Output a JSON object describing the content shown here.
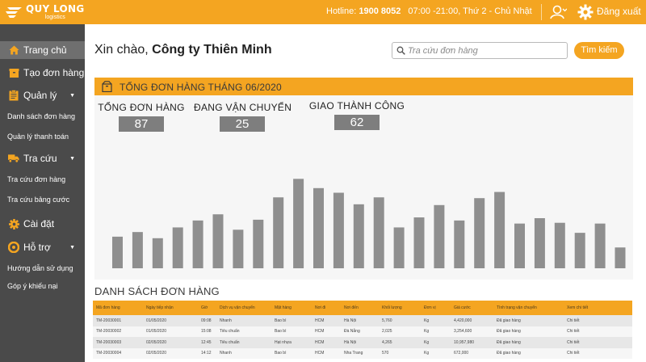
{
  "header": {
    "logo_line1": "QUY LONG",
    "logo_line2": "logistics",
    "hotline_label": "Hotline:",
    "hotline_number": "1900 8052",
    "hours": "07:00 -21:00, Thứ 2 - Chủ Nhật",
    "logout_label": "Đăng xuất",
    "brand_color": "#f4a521"
  },
  "sidebar": {
    "items": [
      {
        "label": "Trang chủ",
        "icon": "home-icon",
        "type": "main",
        "active": true
      },
      {
        "label": "Tạo đơn hàng",
        "icon": "box-icon",
        "type": "main"
      },
      {
        "label": "Quản lý",
        "icon": "clipboard-icon",
        "type": "main",
        "caret": true
      },
      {
        "label": "Danh sách đơn hàng",
        "type": "sub"
      },
      {
        "label": "Quản lý thanh toán",
        "type": "sub"
      },
      {
        "label": "Tra cứu",
        "icon": "truck-icon",
        "type": "main",
        "caret": true
      },
      {
        "label": "Tra cứu đơn hàng",
        "type": "sub"
      },
      {
        "label": "Tra cứu bảng cước",
        "type": "sub"
      },
      {
        "label": "Cài đặt",
        "icon": "gear-icon",
        "type": "main"
      },
      {
        "label": "Hỗ trợ",
        "icon": "support-icon",
        "type": "main",
        "caret": true
      },
      {
        "label": "Hướng dẫn sử dụng",
        "type": "sub"
      },
      {
        "label": "Góp ý khiếu nại",
        "type": "sub"
      }
    ]
  },
  "greeting": {
    "prefix": "Xin chào,",
    "company": "Công ty Thiên Minh"
  },
  "search": {
    "placeholder": "Tra cứu đơn hàng",
    "button_label": "Tìm kiếm"
  },
  "summary": {
    "title": "TỔNG ĐƠN HÀNG THÁNG 06/2020",
    "stats": [
      {
        "label": "TỔNG ĐƠN HÀNG",
        "value": "87"
      },
      {
        "label": "ĐANG VẬN CHUYỂN",
        "value": "25"
      },
      {
        "label": "GIAO THÀNH CÔNG",
        "value": "62"
      }
    ]
  },
  "chart_data": {
    "type": "bar",
    "categories": [
      "",
      "",
      "",
      "",
      "",
      "",
      "",
      "",
      "",
      "",
      "",
      "",
      "",
      "",
      "",
      "",
      "",
      "",
      "",
      "",
      "",
      "",
      "",
      "",
      "",
      ""
    ],
    "values": [
      41,
      47,
      39,
      53,
      62,
      70,
      50,
      63,
      92,
      116,
      104,
      98,
      83,
      92,
      53,
      66,
      82,
      62,
      91,
      99,
      58,
      65,
      59,
      46,
      58,
      27
    ],
    "ylim": [
      0,
      130
    ],
    "bar_color": "#8f8f8f",
    "grid": false
  },
  "orders": {
    "title": "DANH SÁCH ĐƠN HÀNG",
    "columns": [
      "Mã đơn hàng",
      "Ngày tiếp nhận",
      "Giờ",
      "Dịch vụ vận chuyển",
      "Mặt hàng",
      "Nơi đi",
      "Nơi đến",
      "Khối lượng",
      "Đơn vị",
      "Giá cước",
      "Tình trạng vận chuyển",
      "Xem chi tiết"
    ],
    "rows": [
      [
        "TM-20030001",
        "01/05/2020",
        "09:08",
        "Nhanh",
        "Bao bì",
        "HCM",
        "Hà Nội",
        "5,760",
        "Kg",
        "4,420,000",
        "Đã giao hàng",
        "Chi tiết"
      ],
      [
        "TM-20030002",
        "01/05/2020",
        "15:08",
        "Tiêu chuẩn",
        "Bao bì",
        "HCM",
        "Đà Nẵng",
        "2,025",
        "Kg",
        "3,254,600",
        "Đã giao hàng",
        "Chi tiết"
      ],
      [
        "TM-20030003",
        "02/05/2020",
        "12:45",
        "Tiêu chuẩn",
        "Hạt nhựa",
        "HCM",
        "Hà Nội",
        "4,265",
        "Kg",
        "10,957,980",
        "Đã giao hàng",
        "Chi tiết"
      ],
      [
        "TM-20030004",
        "02/05/2020",
        "14:12",
        "Nhanh",
        "Bao bì",
        "HCM",
        "Nha Trang",
        "570",
        "Kg",
        "672,000",
        "Đã giao hàng",
        "Chi tiết"
      ]
    ]
  }
}
